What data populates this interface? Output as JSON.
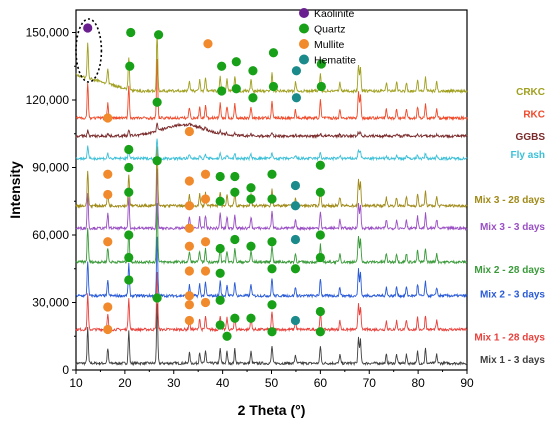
{
  "chart_data": {
    "type": "line",
    "title": "",
    "xlabel": "2 Theta (°)",
    "ylabel": "Intensity",
    "xlim": [
      10,
      90
    ],
    "ylim": [
      0,
      160000
    ],
    "xticks": [
      10,
      20,
      30,
      40,
      50,
      60,
      70,
      80,
      90
    ],
    "yticks": [
      0,
      30000,
      60000,
      90000,
      120000,
      150000
    ],
    "ytick_labels": [
      "0",
      "30,000",
      "60,000",
      "90,000",
      "120,000",
      "150,000"
    ],
    "grid": false,
    "legend_position": "top-center",
    "legend": [
      {
        "name": "Kaolinite",
        "color": "#6a1f8f"
      },
      {
        "name": "Quartz",
        "color": "#18a018"
      },
      {
        "name": "Mullite",
        "color": "#f08a2c"
      },
      {
        "name": "Hematite",
        "color": "#1a8a8a"
      }
    ],
    "series": [
      {
        "name": "Mix 1 - 3 days",
        "color": "#404040",
        "baseline": 3000,
        "label_y": 5000
      },
      {
        "name": "Mix 1 - 28 days",
        "color": "#e8413c",
        "baseline": 18000,
        "label_y": 15000
      },
      {
        "name": "Mix 2 - 3 days",
        "color": "#2a5bd7",
        "baseline": 33000,
        "label_y": 34000
      },
      {
        "name": "Mix 2 - 28 days",
        "color": "#3a9a3a",
        "baseline": 48000,
        "label_y": 45000
      },
      {
        "name": "Mix 3 - 3 days",
        "color": "#9a4fc4",
        "baseline": 63000,
        "label_y": 64000
      },
      {
        "name": "Mix 3 - 28 days",
        "color": "#a08a18",
        "baseline": 73000,
        "label_y": 76000
      },
      {
        "name": "Fly ash",
        "color": "#3cc0d8",
        "baseline": 94000,
        "label_y": 96000
      },
      {
        "name": "GGBS",
        "color": "#7a2a2a",
        "baseline": 104000,
        "label_y": 104000
      },
      {
        "name": "RKC",
        "color": "#f04a2a",
        "baseline": 112000,
        "label_y": 114000
      },
      {
        "name": "CRKC",
        "color": "#a0a020",
        "baseline": 124000,
        "label_y": 124000
      }
    ],
    "peaks": [
      {
        "x": 12.4,
        "h": 0.6
      },
      {
        "x": 16.5,
        "h": 0.25
      },
      {
        "x": 20.8,
        "h": 0.55
      },
      {
        "x": 26.6,
        "h": 1.0
      },
      {
        "x": 33.2,
        "h": 0.18
      },
      {
        "x": 35.3,
        "h": 0.2
      },
      {
        "x": 36.5,
        "h": 0.22
      },
      {
        "x": 39.5,
        "h": 0.25
      },
      {
        "x": 40.9,
        "h": 0.2
      },
      {
        "x": 42.5,
        "h": 0.25
      },
      {
        "x": 45.8,
        "h": 0.2
      },
      {
        "x": 50.1,
        "h": 0.3
      },
      {
        "x": 54.9,
        "h": 0.15
      },
      {
        "x": 60.0,
        "h": 0.3
      },
      {
        "x": 64.0,
        "h": 0.15
      },
      {
        "x": 67.8,
        "h": 0.45
      },
      {
        "x": 68.2,
        "h": 0.4
      },
      {
        "x": 73.5,
        "h": 0.15
      },
      {
        "x": 75.6,
        "h": 0.15
      },
      {
        "x": 77.6,
        "h": 0.15
      },
      {
        "x": 79.9,
        "h": 0.2
      },
      {
        "x": 81.5,
        "h": 0.25
      },
      {
        "x": 83.8,
        "h": 0.15
      }
    ],
    "markers": [
      {
        "type": "Kaolinite",
        "x": 12.4,
        "y": 152000
      },
      {
        "type": "Mullite",
        "x": 16.5,
        "y": 18000
      },
      {
        "type": "Quartz",
        "x": 20.8,
        "y": 40000
      },
      {
        "type": "Quartz",
        "x": 26.6,
        "y": 32000
      },
      {
        "type": "Mullite",
        "x": 33.2,
        "y": 22000
      },
      {
        "type": "Mullite",
        "x": 36.5,
        "y": 30000
      },
      {
        "type": "Quartz",
        "x": 39.5,
        "y": 20000
      },
      {
        "type": "Quartz",
        "x": 39.5,
        "y": 31000
      },
      {
        "type": "Quartz",
        "x": 42.5,
        "y": 23000
      },
      {
        "type": "Quartz",
        "x": 45.8,
        "y": 23000
      },
      {
        "type": "Quartz",
        "x": 50.1,
        "y": 29000
      },
      {
        "type": "Quartz",
        "x": 50.1,
        "y": 17000
      },
      {
        "type": "Hematite",
        "x": 54.9,
        "y": 22000
      },
      {
        "type": "Quartz",
        "x": 60.0,
        "y": 26000
      },
      {
        "type": "Quartz",
        "x": 60.0,
        "y": 17000
      },
      {
        "type": "Mullite",
        "x": 33.2,
        "y": 29000
      },
      {
        "type": "Quartz",
        "x": 40.9,
        "y": 15000
      },
      {
        "type": "Mullite",
        "x": 16.5,
        "y": 28000
      },
      {
        "type": "Quartz",
        "x": 20.8,
        "y": 50000
      },
      {
        "type": "Mullite",
        "x": 33.2,
        "y": 44000
      },
      {
        "type": "Mullite",
        "x": 36.5,
        "y": 44000
      },
      {
        "type": "Quartz",
        "x": 39.5,
        "y": 54000
      },
      {
        "type": "Quartz",
        "x": 39.5,
        "y": 43000
      },
      {
        "type": "Quartz",
        "x": 42.5,
        "y": 58000
      },
      {
        "type": "Quartz",
        "x": 45.8,
        "y": 55000
      },
      {
        "type": "Quartz",
        "x": 50.1,
        "y": 57000
      },
      {
        "type": "Quartz",
        "x": 50.1,
        "y": 45000
      },
      {
        "type": "Hematite",
        "x": 54.9,
        "y": 58000
      },
      {
        "type": "Quartz",
        "x": 54.9,
        "y": 45000
      },
      {
        "type": "Quartz",
        "x": 60.0,
        "y": 60000
      },
      {
        "type": "Quartz",
        "x": 60.0,
        "y": 50000
      },
      {
        "type": "Mullite",
        "x": 16.5,
        "y": 57000
      },
      {
        "type": "Quartz",
        "x": 20.8,
        "y": 60000
      },
      {
        "type": "Mullite",
        "x": 33.2,
        "y": 55000
      },
      {
        "type": "Mullite",
        "x": 36.5,
        "y": 57000
      },
      {
        "type": "Mullite",
        "x": 16.5,
        "y": 78000
      },
      {
        "type": "Quartz",
        "x": 20.8,
        "y": 90000
      },
      {
        "type": "Quartz",
        "x": 20.8,
        "y": 79000
      },
      {
        "type": "Quartz",
        "x": 26.6,
        "y": 93000
      },
      {
        "type": "Mullite",
        "x": 33.2,
        "y": 84000
      },
      {
        "type": "Mullite",
        "x": 36.5,
        "y": 87000
      },
      {
        "type": "Mullite",
        "x": 33.2,
        "y": 73000
      },
      {
        "type": "Mullite",
        "x": 36.5,
        "y": 76000
      },
      {
        "type": "Quartz",
        "x": 39.5,
        "y": 86000
      },
      {
        "type": "Quartz",
        "x": 39.5,
        "y": 75000
      },
      {
        "type": "Quartz",
        "x": 42.5,
        "y": 86000
      },
      {
        "type": "Quartz",
        "x": 42.5,
        "y": 79000
      },
      {
        "type": "Quartz",
        "x": 45.8,
        "y": 81000
      },
      {
        "type": "Quartz",
        "x": 45.8,
        "y": 76000
      },
      {
        "type": "Quartz",
        "x": 50.1,
        "y": 87000
      },
      {
        "type": "Quartz",
        "x": 50.1,
        "y": 76000
      },
      {
        "type": "Hematite",
        "x": 54.9,
        "y": 82000
      },
      {
        "type": "Hematite",
        "x": 54.9,
        "y": 73000
      },
      {
        "type": "Quartz",
        "x": 60.0,
        "y": 91000
      },
      {
        "type": "Quartz",
        "x": 60.0,
        "y": 79000
      },
      {
        "type": "Mullite",
        "x": 16.5,
        "y": 87000
      },
      {
        "type": "Quartz",
        "x": 20.8,
        "y": 98000
      },
      {
        "type": "Mullite",
        "x": 33.2,
        "y": 63000
      },
      {
        "type": "Mullite",
        "x": 33.2,
        "y": 33000
      },
      {
        "type": "Mullite",
        "x": 16.5,
        "y": 112000
      },
      {
        "type": "Quartz",
        "x": 26.6,
        "y": 119000
      },
      {
        "type": "Mullite",
        "x": 33.2,
        "y": 106000
      },
      {
        "type": "Quartz",
        "x": 21.2,
        "y": 150000
      },
      {
        "type": "Quartz",
        "x": 21.0,
        "y": 135000
      },
      {
        "type": "Quartz",
        "x": 26.9,
        "y": 149000
      },
      {
        "type": "Mullite",
        "x": 37.0,
        "y": 145000
      },
      {
        "type": "Quartz",
        "x": 39.8,
        "y": 135000
      },
      {
        "type": "Quartz",
        "x": 42.8,
        "y": 137000
      },
      {
        "type": "Quartz",
        "x": 46.2,
        "y": 133000
      },
      {
        "type": "Quartz",
        "x": 50.4,
        "y": 141000
      },
      {
        "type": "Hematite",
        "x": 55.1,
        "y": 133000
      },
      {
        "type": "Quartz",
        "x": 60.2,
        "y": 136000
      },
      {
        "type": "Quartz",
        "x": 39.8,
        "y": 124000
      },
      {
        "type": "Quartz",
        "x": 42.8,
        "y": 125000
      },
      {
        "type": "Quartz",
        "x": 46.2,
        "y": 121000
      },
      {
        "type": "Quartz",
        "x": 50.4,
        "y": 126000
      },
      {
        "type": "Hematite",
        "x": 55.1,
        "y": 121000
      },
      {
        "type": "Quartz",
        "x": 60.2,
        "y": 126000
      }
    ],
    "annotation": {
      "shape": "dotted-ellipse",
      "x": 12.6,
      "y": 142000,
      "rx_units": 2.6,
      "ry_units": 14000
    }
  }
}
